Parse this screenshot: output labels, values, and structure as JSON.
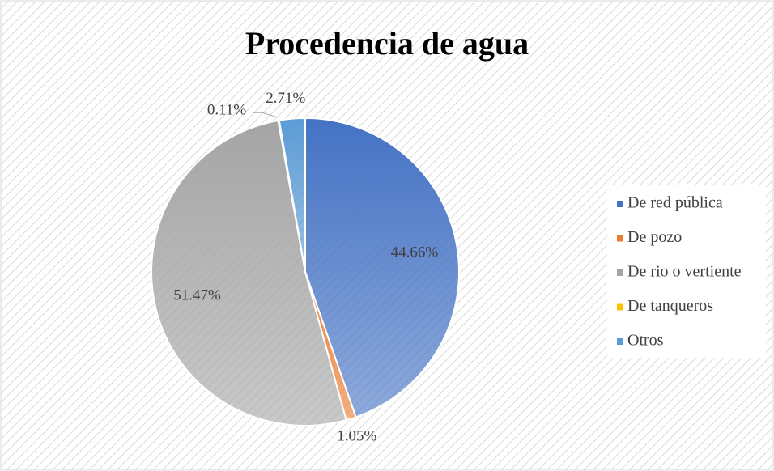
{
  "chart_data": {
    "type": "pie",
    "title": "Procedencia de agua",
    "categories": [
      "De red pública",
      "De pozo",
      "De rio o vertiente",
      "De tanqueros",
      "Otros"
    ],
    "values": [
      44.66,
      1.05,
      51.47,
      0.11,
      2.71
    ],
    "value_labels": [
      "44.66%",
      "1.05%",
      "51.47%",
      "0.11%",
      "2.71%"
    ],
    "colors": [
      "#4472c4",
      "#ed7d31",
      "#a5a5a5",
      "#ffc000",
      "#5b9bd5"
    ],
    "legend": "right"
  }
}
